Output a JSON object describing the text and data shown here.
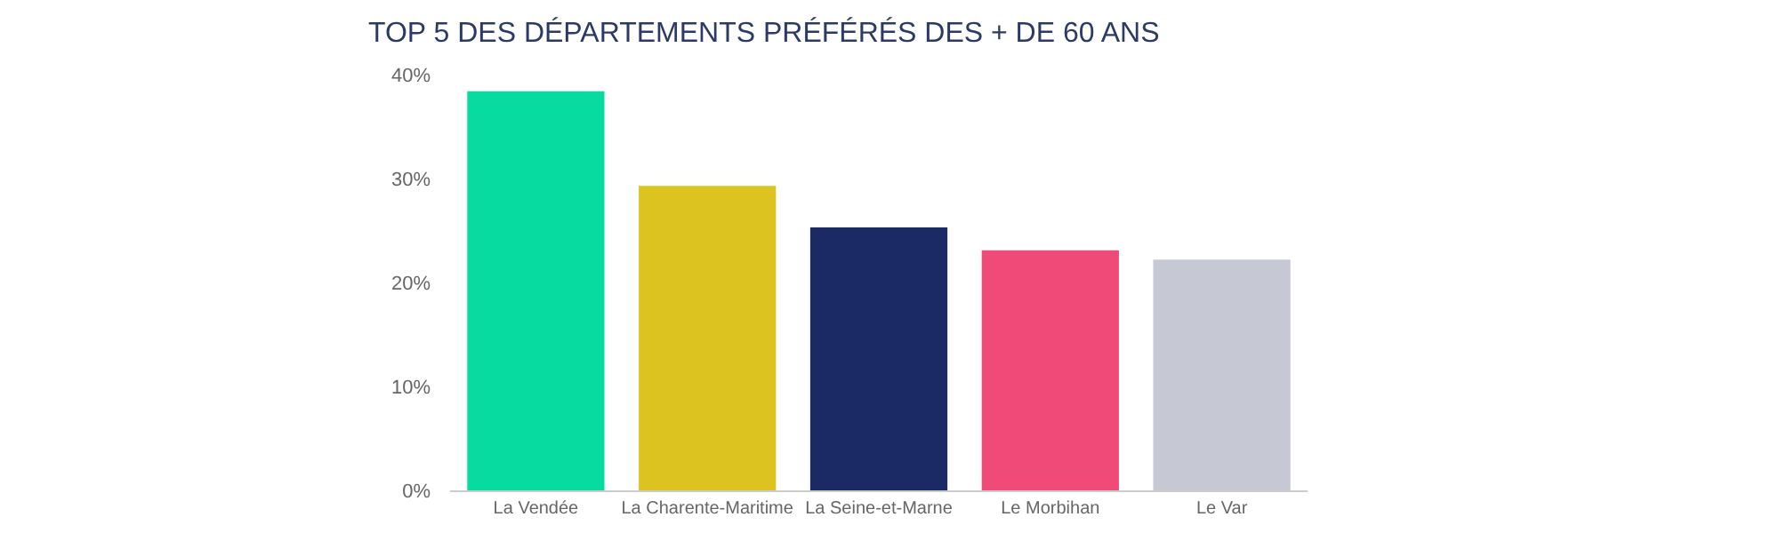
{
  "chart_data": {
    "type": "bar",
    "title": "TOP 5 DES DÉPARTEMENTS PRÉFÉRÉS DES + DE 60 ANS",
    "categories": [
      "La Vendée",
      "La Charente-Maritime",
      "La Seine-et-Marne",
      "Le Morbihan",
      "Le Var"
    ],
    "values": [
      38.4,
      29.3,
      25.3,
      23.1,
      22.2
    ],
    "colors": [
      "#07dba0",
      "#dcc320",
      "#1b2a65",
      "#f04b78",
      "#c6c8d4"
    ],
    "ylim": [
      0,
      40
    ],
    "yticks": [
      {
        "value": 0,
        "label": "0%"
      },
      {
        "value": 10,
        "label": "10%"
      },
      {
        "value": 20,
        "label": "20%"
      },
      {
        "value": 30,
        "label": "30%"
      },
      {
        "value": 40,
        "label": "40%"
      }
    ]
  }
}
